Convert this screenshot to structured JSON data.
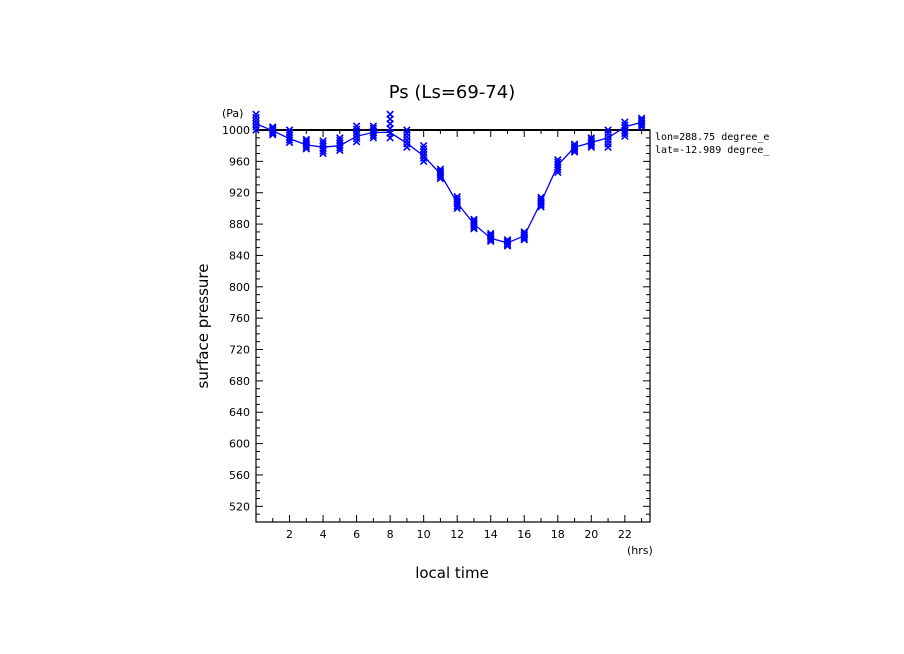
{
  "chart_data": {
    "type": "scatter",
    "title": "Ps (Ls=69-74)",
    "xlabel": "local time",
    "xunits": "(hrs)",
    "ylabel": "surface pressure",
    "yunits": "(Pa)",
    "xlim": [
      0,
      23.5
    ],
    "ylim": [
      500,
      1000
    ],
    "xticks": [
      2,
      4,
      6,
      8,
      10,
      12,
      14,
      16,
      18,
      20,
      22
    ],
    "yticks": [
      520,
      560,
      600,
      640,
      680,
      720,
      760,
      800,
      840,
      880,
      920,
      960,
      1000
    ],
    "annotations": [
      "lon=288.75 degree_e",
      "lat=-12.989 degree_"
    ],
    "reference_line": 1000,
    "colors": {
      "series": "#0000ff",
      "axes": "#000000"
    },
    "series": [
      {
        "x": [
          0,
          1,
          2,
          3,
          4,
          5,
          6,
          7,
          8,
          9,
          10,
          11,
          12,
          13,
          14,
          15,
          16,
          17,
          18,
          19,
          20,
          21,
          22,
          23
        ],
        "values": [
          1008,
          999,
          989,
          981,
          978,
          980,
          992,
          997,
          997,
          983,
          967,
          944,
          907,
          880,
          862,
          856,
          865,
          908,
          955,
          978,
          984,
          990,
          1004,
          1010
        ],
        "spread": [
          [
            1020,
            1000
          ],
          [
            1004,
            994
          ],
          [
            1000,
            984
          ],
          [
            988,
            976
          ],
          [
            986,
            970
          ],
          [
            990,
            974
          ],
          [
            1005,
            985
          ],
          [
            1005,
            990
          ],
          [
            1020,
            990
          ],
          [
            1000,
            978
          ],
          [
            980,
            960
          ],
          [
            950,
            938
          ],
          [
            915,
            900
          ],
          [
            886,
            874
          ],
          [
            868,
            858
          ],
          [
            860,
            852
          ],
          [
            870,
            860
          ],
          [
            914,
            902
          ],
          [
            962,
            946
          ],
          [
            982,
            972
          ],
          [
            990,
            978
          ],
          [
            1000,
            978
          ],
          [
            1010,
            992
          ],
          [
            1015,
            1004
          ]
        ]
      }
    ]
  }
}
